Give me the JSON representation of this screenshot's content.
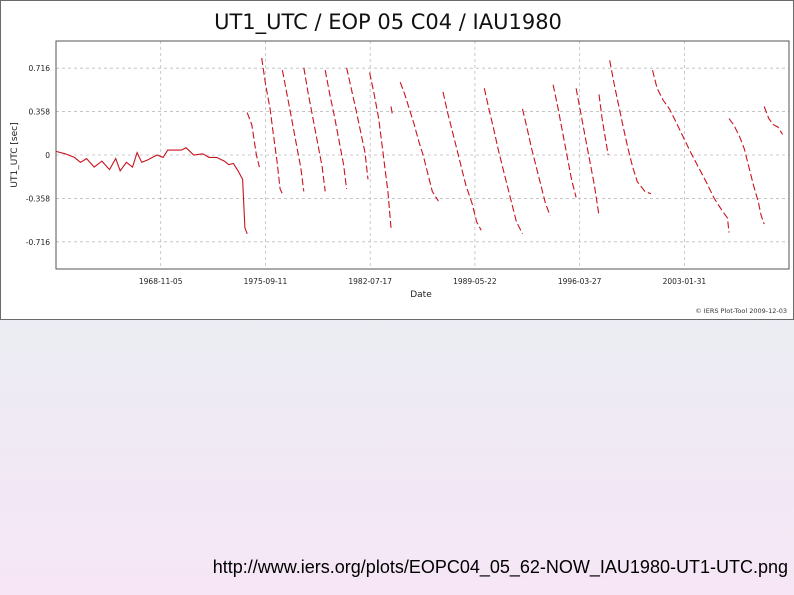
{
  "chart_data": {
    "type": "line",
    "title": "UT1_UTC / EOP 05 C04 / IAU1980",
    "xlabel": "Date",
    "ylabel": "UT1_UTC [sec]",
    "x_tick_labels": [
      "1968-11-05",
      "1975-09-11",
      "1982-07-17",
      "1989-05-22",
      "1996-03-27",
      "2003-01-31"
    ],
    "x_ticks": [
      "1968-11-05",
      "1975-09-11",
      "1982-07-17",
      "1989-05-22",
      "1996-03-27",
      "2003-01-31"
    ],
    "xlim": [
      "1962-01-01",
      "2009-12-03"
    ],
    "y_tick_labels": [
      "0.716",
      "0.358",
      "0",
      "-0.358",
      "-0.716"
    ],
    "y_ticks": [
      0.716,
      0.358,
      0,
      -0.358,
      -0.716
    ],
    "ylim": [
      -0.94,
      0.94
    ],
    "grid": true,
    "credit": "© IERS Plot-Tool 2009-12-03",
    "series": [
      {
        "color": "#c8141e",
        "segments": [
          [
            [
              1962.0,
              0.03
            ],
            [
              1962.6,
              0.01
            ],
            [
              1963.2,
              -0.02
            ],
            [
              1963.6,
              -0.06
            ],
            [
              1964.0,
              -0.03
            ],
            [
              1964.5,
              -0.1
            ],
            [
              1965.0,
              -0.05
            ],
            [
              1965.5,
              -0.12
            ],
            [
              1965.9,
              -0.03
            ],
            [
              1966.2,
              -0.13
            ],
            [
              1966.6,
              -0.06
            ],
            [
              1967.0,
              -0.1
            ],
            [
              1967.3,
              0.02
            ],
            [
              1967.6,
              -0.06
            ],
            [
              1968.0,
              -0.04
            ],
            [
              1968.6,
              0.0
            ],
            [
              1969.0,
              -0.02
            ],
            [
              1969.3,
              0.04
            ],
            [
              1969.8,
              0.04
            ],
            [
              1970.2,
              0.04
            ],
            [
              1970.5,
              0.06
            ],
            [
              1971.0,
              0.0
            ],
            [
              1971.6,
              0.01
            ],
            [
              1972.0,
              -0.02
            ],
            [
              1972.5,
              -0.02
            ],
            [
              1973.0,
              -0.05
            ],
            [
              1973.3,
              -0.08
            ],
            [
              1973.6,
              -0.07
            ],
            [
              1973.9,
              -0.13
            ],
            [
              1974.2,
              -0.2
            ],
            [
              1974.35,
              -0.6
            ],
            [
              1974.5,
              -0.65
            ]
          ],
          [
            [
              1974.5,
              0.35
            ],
            [
              1974.8,
              0.25
            ],
            [
              1975.1,
              0.0
            ],
            [
              1975.3,
              -0.1
            ]
          ],
          [
            [
              1975.45,
              0.8
            ],
            [
              1975.7,
              0.58
            ],
            [
              1976.0,
              0.38
            ],
            [
              1976.2,
              0.18
            ],
            [
              1976.45,
              -0.05
            ],
            [
              1976.65,
              -0.28
            ],
            [
              1976.8,
              -0.32
            ]
          ],
          [
            [
              1976.8,
              0.7
            ],
            [
              1977.1,
              0.5
            ],
            [
              1977.4,
              0.3
            ],
            [
              1977.7,
              0.1
            ],
            [
              1978.0,
              -0.1
            ],
            [
              1978.2,
              -0.3
            ]
          ],
          [
            [
              1978.2,
              0.72
            ],
            [
              1978.5,
              0.5
            ],
            [
              1978.8,
              0.3
            ],
            [
              1979.1,
              0.1
            ],
            [
              1979.4,
              -0.1
            ],
            [
              1979.6,
              -0.3
            ]
          ],
          [
            [
              1979.6,
              0.7
            ],
            [
              1979.9,
              0.5
            ],
            [
              1980.2,
              0.32
            ],
            [
              1980.5,
              0.12
            ],
            [
              1980.8,
              -0.08
            ],
            [
              1981.0,
              -0.28
            ]
          ],
          [
            [
              1981.0,
              0.72
            ],
            [
              1981.3,
              0.55
            ],
            [
              1981.6,
              0.38
            ],
            [
              1981.9,
              0.2
            ],
            [
              1982.2,
              0.02
            ],
            [
              1982.4,
              -0.2
            ]
          ],
          [
            [
              1982.5,
              0.68
            ],
            [
              1982.8,
              0.5
            ],
            [
              1983.1,
              0.3
            ],
            [
              1983.4,
              0.0
            ],
            [
              1983.7,
              -0.3
            ],
            [
              1983.9,
              -0.6
            ]
          ],
          [
            [
              1983.9,
              0.4
            ],
            [
              1984.0,
              0.33
            ]
          ],
          [
            [
              1984.5,
              0.6
            ],
            [
              1984.8,
              0.5
            ],
            [
              1985.1,
              0.38
            ],
            [
              1985.4,
              0.26
            ],
            [
              1985.7,
              0.12
            ],
            [
              1986.0,
              0.0
            ],
            [
              1986.3,
              -0.15
            ],
            [
              1986.6,
              -0.3
            ],
            [
              1987.0,
              -0.38
            ]
          ],
          [
            [
              1987.3,
              0.52
            ],
            [
              1987.6,
              0.35
            ],
            [
              1987.9,
              0.2
            ],
            [
              1988.2,
              0.05
            ],
            [
              1988.5,
              -0.1
            ],
            [
              1988.8,
              -0.25
            ],
            [
              1989.2,
              -0.4
            ],
            [
              1989.5,
              -0.55
            ],
            [
              1989.8,
              -0.62
            ]
          ],
          [
            [
              1990.0,
              0.55
            ],
            [
              1990.3,
              0.38
            ],
            [
              1990.6,
              0.22
            ],
            [
              1990.9,
              0.05
            ],
            [
              1991.2,
              -0.1
            ],
            [
              1991.5,
              -0.25
            ],
            [
              1991.8,
              -0.4
            ],
            [
              1992.1,
              -0.55
            ],
            [
              1992.5,
              -0.65
            ]
          ],
          [
            [
              1992.5,
              0.38
            ],
            [
              1992.8,
              0.22
            ],
            [
              1993.1,
              0.05
            ],
            [
              1993.4,
              -0.1
            ],
            [
              1993.7,
              -0.25
            ],
            [
              1994.0,
              -0.4
            ],
            [
              1994.3,
              -0.5
            ]
          ],
          [
            [
              1994.5,
              0.58
            ],
            [
              1994.8,
              0.4
            ],
            [
              1995.1,
              0.2
            ],
            [
              1995.4,
              0.0
            ],
            [
              1995.7,
              -0.2
            ],
            [
              1996.0,
              -0.35
            ]
          ],
          [
            [
              1996.0,
              0.55
            ],
            [
              1996.3,
              0.35
            ],
            [
              1996.6,
              0.15
            ],
            [
              1996.9,
              -0.05
            ],
            [
              1997.2,
              -0.25
            ],
            [
              1997.5,
              -0.5
            ]
          ],
          [
            [
              1997.5,
              0.5
            ],
            [
              1997.7,
              0.3
            ],
            [
              1997.9,
              0.15
            ],
            [
              1998.1,
              0.0
            ]
          ],
          [
            [
              1998.2,
              0.78
            ],
            [
              1998.5,
              0.58
            ],
            [
              1998.8,
              0.4
            ],
            [
              1999.1,
              0.22
            ],
            [
              1999.4,
              0.05
            ],
            [
              1999.7,
              -0.1
            ],
            [
              2000.0,
              -0.22
            ],
            [
              2000.5,
              -0.3
            ],
            [
              2000.9,
              -0.32
            ]
          ],
          [
            [
              2001.0,
              0.7
            ],
            [
              2001.3,
              0.55
            ],
            [
              2001.7,
              0.45
            ],
            [
              2002.1,
              0.38
            ],
            [
              2002.5,
              0.28
            ],
            [
              2003.0,
              0.15
            ],
            [
              2003.5,
              0.02
            ],
            [
              2004.0,
              -0.1
            ],
            [
              2004.5,
              -0.22
            ],
            [
              2005.0,
              -0.35
            ],
            [
              2005.5,
              -0.45
            ],
            [
              2005.9,
              -0.52
            ],
            [
              2006.0,
              -0.64
            ]
          ],
          [
            [
              2006.0,
              0.3
            ],
            [
              2006.3,
              0.25
            ],
            [
              2006.7,
              0.15
            ],
            [
              2007.0,
              0.05
            ],
            [
              2007.3,
              -0.1
            ],
            [
              2007.6,
              -0.25
            ],
            [
              2007.9,
              -0.38
            ],
            [
              2008.1,
              -0.5
            ],
            [
              2008.3,
              -0.57
            ]
          ],
          [
            [
              2008.3,
              0.4
            ],
            [
              2008.6,
              0.3
            ],
            [
              2008.9,
              0.25
            ],
            [
              2009.2,
              0.23
            ],
            [
              2009.5,
              0.17
            ]
          ]
        ]
      }
    ]
  },
  "footer": {
    "source_url": "http://www.iers.org/plots/EOPC04_05_62-NOW_IAU1980-UT1-UTC.png"
  }
}
